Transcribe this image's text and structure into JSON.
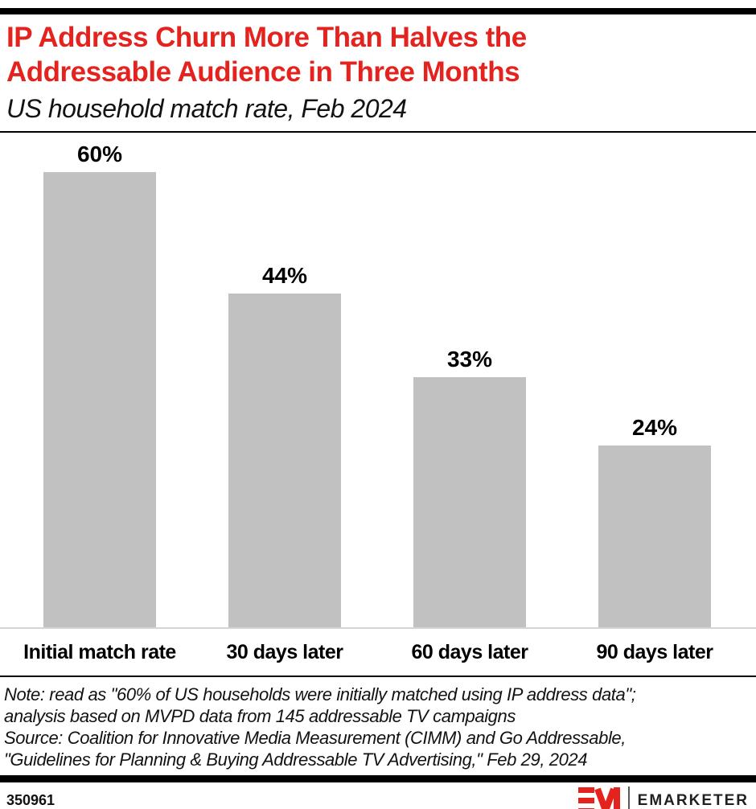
{
  "header": {
    "title": "IP Address Churn More Than Halves the Addressable Audience in Three Months",
    "subtitle": "US household match rate, Feb 2024"
  },
  "chart_data": {
    "type": "bar",
    "categories": [
      "Initial match rate",
      "30 days later",
      "60 days later",
      "90 days later"
    ],
    "values": [
      60,
      44,
      33,
      24
    ],
    "value_labels": [
      "60%",
      "44%",
      "33%",
      "24%"
    ],
    "title": "IP Address Churn More Than Halves the Addressable Audience in Three Months",
    "subtitle": "US household match rate, Feb 2024",
    "xlabel": "",
    "ylabel": "",
    "ylim": [
      0,
      60
    ],
    "grid": false,
    "legend": false,
    "data_labels": true,
    "bar_color": "#c1c1c1"
  },
  "footnote": {
    "note_line1": "Note: read as \"60% of US households were initially matched using IP address data\";",
    "note_line2": "analysis based on MVPD data from 145 addressable TV campaigns",
    "source_line1": "Source: Coalition for Innovative Media Measurement (CIMM) and Go Addressable,",
    "source_line2": "\"Guidelines for Planning & Buying Addressable TV Advertising,\" Feb 29, 2024"
  },
  "footer": {
    "chart_id": "350961",
    "brand": "EMARKETER"
  },
  "colors": {
    "accent_red": "#e4231f",
    "bar_gray": "#c1c1c1",
    "baseline_gray": "#d4d4d4",
    "divider_black": "#000000"
  }
}
